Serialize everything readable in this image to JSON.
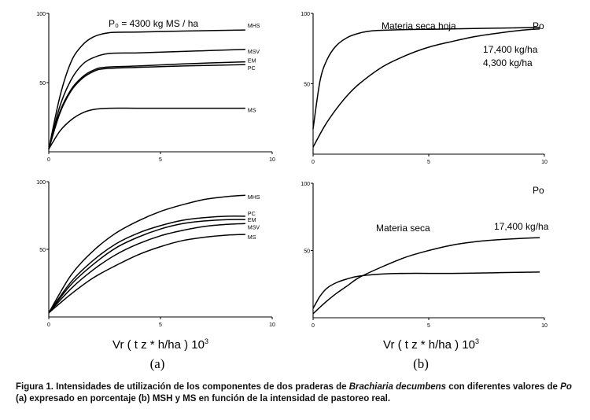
{
  "colors": {
    "ink": "#000000",
    "background": "#ffffff"
  },
  "panel_labels": {
    "a": "(a)",
    "b": "(b)"
  },
  "xlabel_text": "Vr ( t z *  h/ha ) 10",
  "xlabel_exp": "3",
  "caption": {
    "lead": "Figura 1.",
    "t1": " Intensidades de utilización de los componentes de dos praderas de ",
    "species": "Brachiaria decumbens",
    "t2": " con diferentes valores de ",
    "po": "Po",
    "t3": " (a) expresado en porcentaje (b) MSH y MS en función de la intensidad de pastoreo real."
  },
  "chart_data": [
    {
      "id": "top-left",
      "type": "line",
      "xlim": [
        0,
        10
      ],
      "ylim": [
        0,
        100
      ],
      "xticks": [
        "0",
        "5",
        "10"
      ],
      "yticks": [
        "50",
        "100"
      ],
      "annotations": [
        "P₀ = 4300 kg MS / ha"
      ],
      "series": [
        {
          "name": "MHS",
          "x": [
            0,
            0.5,
            1,
            1.5,
            2,
            2.7,
            4,
            6,
            8.8
          ],
          "y": [
            2,
            40,
            65,
            77,
            83,
            86,
            86.5,
            87.2,
            88
          ]
        },
        {
          "name": "MSV",
          "x": [
            0,
            0.5,
            1,
            1.5,
            2,
            2.7,
            4,
            6,
            8.8
          ],
          "y": [
            2,
            33,
            52,
            63,
            68,
            71,
            71.5,
            72.5,
            74
          ]
        },
        {
          "name": "EM",
          "x": [
            0,
            0.5,
            1,
            1.5,
            2,
            2.5,
            4,
            6,
            8.8
          ],
          "y": [
            2,
            29,
            45,
            54,
            59,
            61,
            62,
            63.5,
            65
          ]
        },
        {
          "name": "PC",
          "x": [
            0,
            0.5,
            1,
            1.5,
            2,
            2.5,
            4,
            6,
            8.8
          ],
          "y": [
            2,
            28,
            44,
            53,
            58,
            60,
            61,
            62,
            63
          ]
        },
        {
          "name": "MS",
          "x": [
            0,
            0.5,
            1,
            1.5,
            2,
            2.7,
            4,
            6,
            8.8
          ],
          "y": [
            2,
            15,
            23,
            28,
            30.5,
            31.5,
            31.5,
            31.5,
            31.5
          ]
        }
      ]
    },
    {
      "id": "top-right",
      "type": "line",
      "xlim": [
        0,
        10
      ],
      "ylim": [
        0,
        100
      ],
      "xticks": [
        "0",
        "5",
        "10"
      ],
      "yticks": [
        "50",
        "100"
      ],
      "annotations": [
        "Materia seca hoja",
        "Po",
        "17,400 kg/ha",
        "4,300 kg/ha"
      ],
      "series": [
        {
          "name": "4,300 kg/ha",
          "x": [
            0,
            0.3,
            0.6,
            1,
            1.5,
            2,
            2.5,
            3,
            4,
            5,
            6,
            8,
            9.8
          ],
          "y": [
            18,
            52,
            67,
            77,
            83,
            86,
            87.5,
            88,
            88.5,
            88.7,
            89,
            89.5,
            90
          ]
        },
        {
          "name": "17,400 kg/ha",
          "x": [
            0,
            0.5,
            1,
            1.5,
            2,
            3,
            4,
            5,
            6,
            7,
            8,
            9,
            9.8
          ],
          "y": [
            5,
            20,
            32,
            42,
            50,
            62,
            70,
            76,
            80,
            83.5,
            86,
            88,
            89
          ]
        }
      ]
    },
    {
      "id": "bottom-left",
      "type": "line",
      "xlim": [
        0,
        10
      ],
      "ylim": [
        0,
        100
      ],
      "xticks": [
        "0",
        "5",
        "10"
      ],
      "yticks": [
        "50",
        "100"
      ],
      "series": [
        {
          "name": "MHS",
          "x": [
            0,
            1,
            2,
            3,
            4,
            5,
            6,
            7,
            8,
            8.8
          ],
          "y": [
            3,
            31,
            49,
            62,
            71,
            78,
            83,
            87,
            89,
            90
          ]
        },
        {
          "name": "PC",
          "x": [
            0,
            1,
            2,
            3,
            4,
            5,
            6,
            7,
            8,
            8.8
          ],
          "y": [
            3,
            26,
            42,
            54,
            62,
            67.5,
            71.5,
            73.5,
            74.5,
            74.5
          ]
        },
        {
          "name": "EM",
          "x": [
            0,
            1,
            2,
            3,
            4,
            5,
            6,
            7,
            8,
            8.8
          ],
          "y": [
            3,
            24,
            39,
            51,
            59,
            65,
            69,
            71,
            72,
            72
          ]
        },
        {
          "name": "MSV",
          "x": [
            0,
            1,
            2,
            3,
            4,
            5,
            6,
            7,
            8,
            8.8
          ],
          "y": [
            3,
            21,
            35,
            46,
            54,
            60,
            64,
            67,
            68.5,
            69
          ]
        },
        {
          "name": "MS",
          "x": [
            0,
            1,
            2,
            3,
            4,
            5,
            6,
            7,
            8,
            8.8
          ],
          "y": [
            3,
            17,
            29,
            38,
            46,
            52,
            56.5,
            59,
            60.5,
            61
          ]
        }
      ]
    },
    {
      "id": "bottom-right",
      "type": "line",
      "xlim": [
        0,
        10
      ],
      "ylim": [
        0,
        100
      ],
      "xticks": [
        "0",
        "5",
        "10"
      ],
      "yticks": [
        "50",
        "100"
      ],
      "annotations": [
        "Po",
        "Materia seca",
        "17,400 kg/ha"
      ],
      "series": [
        {
          "name": "4,300 kg/ha",
          "x": [
            0,
            0.3,
            0.6,
            1,
            1.5,
            2,
            3,
            4,
            6,
            8,
            9.8
          ],
          "y": [
            7,
            16,
            22,
            26,
            29,
            31,
            32.5,
            33,
            33,
            33.5,
            34
          ]
        },
        {
          "name": "17,400 kg/ha",
          "x": [
            0,
            0.5,
            1,
            1.5,
            2,
            3,
            4,
            5,
            6,
            7,
            8,
            9,
            9.8
          ],
          "y": [
            3,
            11,
            18,
            24,
            30,
            38,
            45,
            50,
            54,
            56.5,
            58,
            59,
            59.5
          ]
        }
      ]
    }
  ]
}
